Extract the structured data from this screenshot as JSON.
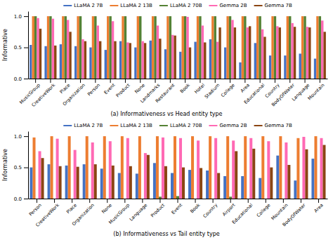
{
  "chart_data": [
    {
      "type": "bar",
      "title": "(a) Informativeness vs Head entity type",
      "ylabel": "Informative",
      "categories": [
        "MusicGroup",
        "CreativeWork",
        "Place",
        "Organization",
        "Person",
        "Event",
        "Product",
        "None",
        "Landmarks",
        "Restaurant",
        "Book",
        "Hotel",
        "Stadium",
        "College",
        "Area",
        "Educational",
        "Country",
        "BodyOfWater",
        "Language",
        "Mountain"
      ],
      "series": [
        {
          "name": "LLaMA 2 7B",
          "color": "#4472c4",
          "values": [
            0.54,
            0.52,
            0.55,
            0.52,
            0.5,
            0.46,
            0.6,
            0.5,
            0.61,
            0.47,
            0.43,
            0.59,
            0.63,
            0.5,
            0.26,
            0.57,
            0.37,
            0.37,
            0.4,
            0.32
          ]
        },
        {
          "name": "LLaMA 2 13B",
          "color": "#ed7d31",
          "values": [
            1.0,
            1.0,
            1.0,
            1.0,
            1.0,
            1.0,
            1.0,
            1.0,
            1.0,
            1.0,
            1.0,
            1.0,
            1.0,
            1.0,
            1.0,
            1.0,
            1.0,
            1.0,
            1.0,
            1.0
          ]
        },
        {
          "name": "LLaMA 2 70B",
          "color": "#548235",
          "values": [
            1.0,
            1.0,
            1.0,
            1.0,
            1.0,
            1.0,
            1.0,
            1.0,
            1.0,
            1.0,
            1.0,
            1.0,
            1.0,
            1.0,
            1.0,
            1.0,
            1.0,
            1.0,
            1.0,
            1.0
          ]
        },
        {
          "name": "Gemma 2B",
          "color": "#ff69b4",
          "values": [
            0.97,
            0.96,
            0.94,
            0.63,
            0.85,
            0.92,
            0.58,
            0.6,
            0.85,
            0.7,
            0.99,
            0.85,
            0.59,
            0.94,
            0.82,
            0.79,
            0.84,
            0.89,
            0.83,
            0.93
          ]
        },
        {
          "name": "Gemma 7B",
          "color": "#8b4513",
          "values": [
            0.8,
            0.53,
            0.75,
            0.6,
            0.6,
            0.6,
            0.57,
            0.57,
            0.64,
            0.69,
            0.5,
            0.58,
            0.82,
            0.82,
            0.84,
            0.67,
            0.82,
            0.83,
            0.82,
            0.75
          ]
        }
      ],
      "ylim": [
        0.0,
        1.08
      ],
      "yticks": [
        {
          "value": 0.0,
          "label": "0.0"
        },
        0.5,
        {
          "value": 1.0,
          "label": "1.0"
        }
      ],
      "legend": "top"
    },
    {
      "type": "bar",
      "title": "(b) Informativeness vs Tail entity type",
      "ylabel": "Informative",
      "categories": [
        "Person",
        "CreativeWork",
        "Place",
        "Organization",
        "None",
        "MusicGroup",
        "Language",
        "Product",
        "Event",
        "Book",
        "Country",
        "Airport",
        "Educational",
        "College",
        "Mountain",
        "BodyOfWater",
        "Area"
      ],
      "series": [
        {
          "name": "LLaMA 2 7B",
          "color": "#4472c4",
          "values": [
            0.5,
            0.55,
            0.53,
            0.55,
            0.48,
            0.41,
            0.4,
            0.57,
            0.41,
            0.46,
            0.45,
            0.36,
            0.36,
            0.33,
            0.69,
            0.29,
            0.64
          ]
        },
        {
          "name": "LLaMA 2 13B",
          "color": "#ed7d31",
          "values": [
            0.98,
            1.0,
            1.0,
            1.0,
            1.0,
            1.0,
            1.0,
            1.0,
            1.0,
            1.0,
            1.0,
            1.0,
            1.0,
            1.0,
            1.0,
            0.97,
            1.0
          ]
        },
        {
          "name": "LLaMA 2 70B",
          "color": "#548235",
          "values": [
            0.0,
            0.0,
            0.0,
            0.0,
            0.0,
            0.0,
            0.0,
            0.03,
            0.04,
            0.0,
            0.0,
            0.03,
            0.0,
            0.0,
            0.0,
            0.0,
            0.0
          ]
        },
        {
          "name": "Gemma 2B",
          "color": "#ff69b4",
          "values": [
            0.76,
            0.96,
            0.78,
            0.9,
            0.92,
            0.97,
            0.73,
            0.98,
            0.97,
            0.93,
            0.97,
            0.93,
            0.97,
            0.92,
            0.9,
            0.99,
            0.97
          ]
        },
        {
          "name": "Gemma 7B",
          "color": "#8b4513",
          "values": [
            0.65,
            0.52,
            0.51,
            0.55,
            0.53,
            0.52,
            0.7,
            0.52,
            0.5,
            0.49,
            0.41,
            0.76,
            0.8,
            0.5,
            0.54,
            0.79,
            0.86
          ]
        }
      ],
      "ylim": [
        0.0,
        1.08
      ],
      "yticks": [
        {
          "value": 0.0,
          "label": "0.0"
        },
        0.5,
        {
          "value": 1.0,
          "label": "1.0"
        }
      ],
      "legend": "top"
    }
  ]
}
